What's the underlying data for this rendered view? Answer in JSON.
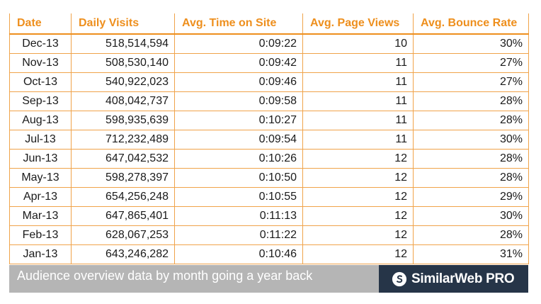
{
  "table": {
    "headers": [
      "Date",
      "Daily Visits",
      "Avg. Time on Site",
      "Avg. Page Views",
      "Avg. Bounce Rate"
    ],
    "rows": [
      [
        "Dec-13",
        "518,514,594",
        "0:09:22",
        "10",
        "30%"
      ],
      [
        "Nov-13",
        "508,530,140",
        "0:09:42",
        "11",
        "27%"
      ],
      [
        "Oct-13",
        "540,922,023",
        "0:09:46",
        "11",
        "27%"
      ],
      [
        "Sep-13",
        "408,042,737",
        "0:09:58",
        "11",
        "28%"
      ],
      [
        "Aug-13",
        "598,935,639",
        "0:10:27",
        "11",
        "28%"
      ],
      [
        "Jul-13",
        "712,232,489",
        "0:09:54",
        "11",
        "30%"
      ],
      [
        "Jun-13",
        "647,042,532",
        "0:10:26",
        "12",
        "28%"
      ],
      [
        "May-13",
        "598,278,397",
        "0:10:50",
        "12",
        "28%"
      ],
      [
        "Apr-13",
        "654,256,248",
        "0:10:55",
        "12",
        "29%"
      ],
      [
        "Mar-13",
        "647,865,401",
        "0:11:13",
        "12",
        "30%"
      ],
      [
        "Feb-13",
        "628,067,253",
        "0:11:22",
        "12",
        "28%"
      ],
      [
        "Jan-13",
        "643,246,282",
        "0:10:46",
        "12",
        "31%"
      ]
    ]
  },
  "footer": {
    "caption": "Audience overview data by month going a year back",
    "brand": "SimilarWeb PRO",
    "brand_icon": "similarweb-logo-icon"
  },
  "colors": {
    "header_text": "#ee8f1d",
    "border": "#f0a34a",
    "caption_bg": "#b5b5b5",
    "brand_bg": "#263548"
  }
}
